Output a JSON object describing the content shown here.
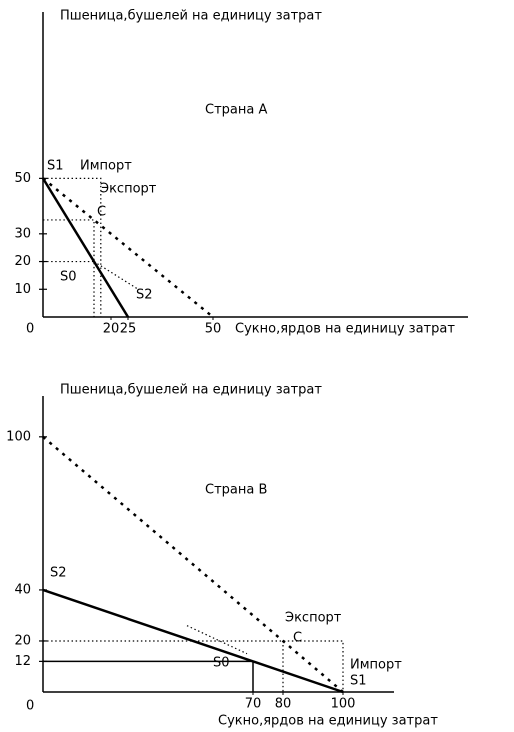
{
  "chart_data": [
    {
      "type": "line",
      "title": "Пшеница,бушелей на единицу затрат",
      "subtitle": "Страна А",
      "x_label": "Сукно,ярдов на единицу затрат",
      "origin": 0,
      "xlim": [
        0,
        125
      ],
      "ylim": [
        0,
        110
      ],
      "xticks": [
        20,
        25,
        50
      ],
      "yticks": [
        10,
        20,
        30,
        50
      ],
      "annotations": [
        "S1",
        "Импорт",
        "Экспорт",
        "C",
        "S0",
        "S2"
      ],
      "series": [
        {
          "color": "#000000",
          "dash": false,
          "width": 2.5,
          "x": [
            0,
            25
          ],
          "values": [
            50,
            0
          ]
        },
        {
          "color": "#000000",
          "dash": true,
          "width": 2.5,
          "x": [
            0,
            50
          ],
          "values": [
            50,
            0
          ]
        },
        {
          "color": "#000000",
          "dash": true,
          "width": 1.2,
          "x": [
            0,
            17,
            17
          ],
          "values": [
            50,
            50,
            0
          ]
        },
        {
          "color": "#000000",
          "dash": true,
          "width": 1.2,
          "x": [
            0,
            15,
            15
          ],
          "values": [
            35,
            35,
            0
          ]
        },
        {
          "color": "#000000",
          "dash": true,
          "width": 1.2,
          "x": [
            0,
            15
          ],
          "values": [
            20,
            20
          ]
        },
        {
          "color": "#000000",
          "dash": true,
          "width": 1.2,
          "x": [
            15,
            28
          ],
          "values": [
            20,
            10
          ]
        }
      ]
    },
    {
      "type": "line",
      "title": "Пшеница,бушелей на единицу затрат",
      "subtitle": "Страна В",
      "x_label": "Сукно,ярдов на единицу затрат",
      "origin": 0,
      "xlim": [
        0,
        117
      ],
      "ylim": [
        0,
        116
      ],
      "xticks": [
        70,
        80,
        100
      ],
      "yticks": [
        12,
        20,
        40,
        100
      ],
      "annotations": [
        "S2",
        "Экспорт",
        "C",
        "S0",
        "Импорт",
        "S1"
      ],
      "series": [
        {
          "color": "#000000",
          "dash": false,
          "width": 2.5,
          "x": [
            0,
            100
          ],
          "values": [
            40,
            0
          ]
        },
        {
          "color": "#000000",
          "dash": true,
          "width": 2.5,
          "x": [
            0,
            100
          ],
          "values": [
            100,
            0
          ]
        },
        {
          "color": "#000000",
          "dash": false,
          "width": 1.5,
          "x": [
            0,
            70,
            70
          ],
          "values": [
            12,
            12,
            0
          ]
        },
        {
          "color": "#000000",
          "dash": true,
          "width": 1.2,
          "x": [
            0,
            100,
            100
          ],
          "values": [
            20,
            20,
            0
          ]
        },
        {
          "color": "#000000",
          "dash": true,
          "width": 1.2,
          "x": [
            80,
            80
          ],
          "values": [
            20,
            0
          ]
        },
        {
          "color": "#000000",
          "dash": true,
          "width": 1.2,
          "x": [
            48,
            68
          ],
          "values": [
            26,
            15
          ]
        }
      ]
    }
  ]
}
